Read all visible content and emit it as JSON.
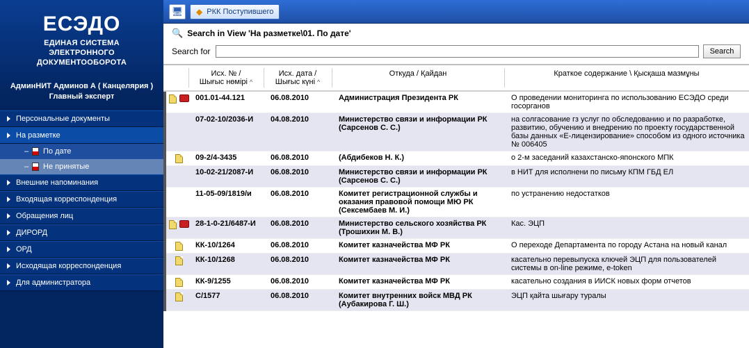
{
  "logo": {
    "title": "ЕСЭДО",
    "sub1": "ЕДИНАЯ СИСТЕМА",
    "sub2": "ЭЛЕКТРОННОГО",
    "sub3": "ДОКУМЕНТООБОРОТА"
  },
  "user": {
    "line1": "АдминНИТ Админов А ( Канцелярия )",
    "line2": "Главный эксперт"
  },
  "nav": [
    {
      "label": "Персональные документы"
    },
    {
      "label": "На разметке",
      "active": true,
      "children": [
        {
          "label": "По дате",
          "flag": true,
          "active": true
        },
        {
          "label": "Не принятые",
          "flag": true
        }
      ]
    },
    {
      "label": "Внешние напоминания"
    },
    {
      "label": "Входящая корреспонденция"
    },
    {
      "label": "Обращения лиц"
    },
    {
      "label": "ДИРОРД"
    },
    {
      "label": "ОРД"
    },
    {
      "label": "Исходящая корреспонденция"
    },
    {
      "label": "Для администратора"
    }
  ],
  "toolbar": {
    "rkk": "РКК Поступившего"
  },
  "search": {
    "title": "Search in View 'На разметке\\01. По дате'",
    "label": "Search for",
    "button": "Search"
  },
  "grid": {
    "headers": {
      "no": "Исх. № /\nШығыс нөмірі",
      "date": "Исх. дата /\nШығыс күні",
      "from": "Откуда / Қайдан",
      "desc": "Краткое содержание \\ Қысқаша мазмұны"
    },
    "rows": [
      {
        "ico": [
          "doc",
          "book"
        ],
        "no": "001.01-44.121",
        "date": "06.08.2010",
        "from": "Администрация Президента РК",
        "desc": "О проведении мониторинга по использованию ЕСЭДО среди госорганов"
      },
      {
        "ico": [],
        "no": "07-02-10/2036-И",
        "date": "04.08.2010",
        "from": "Министерство связи и информации РК (Сарсенов С. С.)",
        "desc": "на солгасование гз услуг по обследованию и по разработке, развитию, обучению и внедрению по проекту государственной базы данных «Е-лицензирование» способом из одного источника № 006405"
      },
      {
        "ico": [
          "doc"
        ],
        "no": "09-2/4-3435",
        "date": "06.08.2010",
        "from": " (Абдибеков Н. К.)",
        "desc": "о 2-м заседаний казахстанско-японского МПК"
      },
      {
        "ico": [],
        "no": "10-02-21/2087-И",
        "date": "06.08.2010",
        "from": "Министерство связи и информации РК (Сарсенов С. С.)",
        "desc": "в НИТ для исполнени по письму КПМ ГБД ЕЛ"
      },
      {
        "ico": [],
        "no": "11-05-09/1819/и",
        "date": "06.08.2010",
        "from": "Комитет регистрационной службы и оказания правовой помощи МЮ РК (Сексембаев М. И.)",
        "desc": " по устранению недостатков"
      },
      {
        "ico": [
          "doc",
          "book"
        ],
        "no": "28-1-0-21/6487-И",
        "date": "06.08.2010",
        "from": "Министерство сельского хозяйства РК (Трошихин М. В.)",
        "desc": "Кас. ЭЦП"
      },
      {
        "ico": [
          "doc"
        ],
        "no": "КК-10/1264",
        "date": "06.08.2010",
        "from": "Комитет казначейства МФ РК",
        "desc": "О переходе Департамента по городу Астана на новый канал"
      },
      {
        "ico": [
          "doc"
        ],
        "no": "КК-10/1268",
        "date": "06.08.2010",
        "from": "Комитет казначейства МФ РК",
        "desc": "касательно перевыпуска ключей ЭЦП для пользователей системы в on-line режиме, e-token"
      },
      {
        "ico": [
          "doc"
        ],
        "no": "КК-9/1255",
        "date": "06.08.2010",
        "from": "Комитет казначейства МФ РК",
        "desc": "касательно создания в ИИСК новых форм отчетов"
      },
      {
        "ico": [
          "doc"
        ],
        "no": "С/1577",
        "date": "06.08.2010",
        "from": "Комитет внутренних войск МВД РК (Аубакирова Г. Ш.)",
        "desc": "ЭЦП қайта шығару туралы"
      }
    ]
  }
}
